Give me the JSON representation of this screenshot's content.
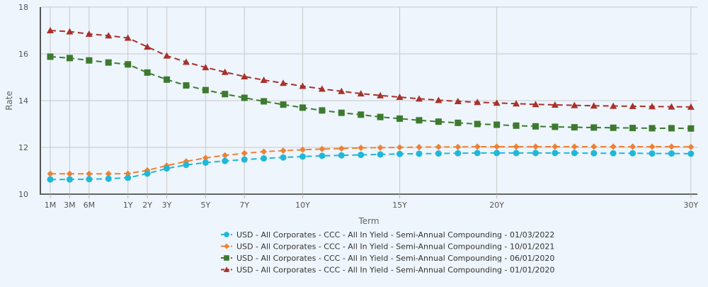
{
  "chart_data": {
    "type": "line",
    "title": "",
    "xlabel": "Term",
    "ylabel": "Rate",
    "ylim": [
      10,
      18
    ],
    "yticks": [
      10,
      12,
      14,
      16,
      18
    ],
    "grid": true,
    "legend_position": "bottom-center",
    "x": [
      "1M",
      "3M",
      "6M",
      "9M",
      "1Y",
      "2Y",
      "3Y",
      "4Y",
      "5Y",
      "6Y",
      "7Y",
      "8Y",
      "9Y",
      "10Y",
      "11Y",
      "12Y",
      "13Y",
      "14Y",
      "15Y",
      "16Y",
      "17Y",
      "18Y",
      "19Y",
      "20Y",
      "21Y",
      "22Y",
      "23Y",
      "24Y",
      "25Y",
      "26Y",
      "27Y",
      "28Y",
      "29Y",
      "30Y"
    ],
    "xtick_labels": [
      "1M",
      "3M",
      "6M",
      "1Y",
      "2Y",
      "3Y",
      "5Y",
      "7Y",
      "10Y",
      "15Y",
      "20Y",
      "30Y"
    ],
    "series": [
      {
        "name": "USD - All Corporates - CCC - All In Yield - Semi-Annual Compounding - 01/03/2022",
        "color": "#1fb8d8",
        "marker": "circle",
        "values": [
          10.63,
          10.63,
          10.64,
          10.66,
          10.7,
          10.88,
          11.1,
          11.25,
          11.35,
          11.42,
          11.48,
          11.53,
          11.57,
          11.61,
          11.64,
          11.66,
          11.68,
          11.7,
          11.72,
          11.73,
          11.74,
          11.75,
          11.76,
          11.76,
          11.76,
          11.76,
          11.76,
          11.76,
          11.75,
          11.75,
          11.75,
          11.74,
          11.74,
          11.73
        ]
      },
      {
        "name": "USD - All Corporates - CCC - All In Yield - Semi-Annual Compounding - 10/01/2021",
        "color": "#ee8134",
        "marker": "diamond",
        "values": [
          10.87,
          10.87,
          10.87,
          10.87,
          10.88,
          11.02,
          11.22,
          11.4,
          11.55,
          11.66,
          11.75,
          11.82,
          11.86,
          11.9,
          11.93,
          11.95,
          11.98,
          11.99,
          12.0,
          12.01,
          12.02,
          12.02,
          12.03,
          12.03,
          12.03,
          12.03,
          12.03,
          12.03,
          12.03,
          12.03,
          12.03,
          12.03,
          12.03,
          12.02
        ]
      },
      {
        "name": "USD - All Corporates - CCC - All In Yield - Semi-Annual Compounding - 06/01/2020",
        "color": "#3d7a2f",
        "marker": "square",
        "values": [
          15.88,
          15.82,
          15.72,
          15.63,
          15.55,
          15.2,
          14.9,
          14.65,
          14.45,
          14.28,
          14.12,
          13.97,
          13.83,
          13.7,
          13.58,
          13.48,
          13.4,
          13.3,
          13.23,
          13.16,
          13.1,
          13.05,
          13.0,
          12.97,
          12.93,
          12.9,
          12.88,
          12.86,
          12.85,
          12.84,
          12.83,
          12.82,
          12.82,
          12.81
        ]
      },
      {
        "name": "USD - All Corporates - CCC - All In Yield - Semi-Annual Compounding - 01/01/2020",
        "color": "#a8312b",
        "marker": "triangle",
        "values": [
          17.0,
          16.95,
          16.85,
          16.78,
          16.68,
          16.3,
          15.92,
          15.65,
          15.42,
          15.22,
          15.03,
          14.88,
          14.75,
          14.62,
          14.5,
          14.4,
          14.3,
          14.22,
          14.15,
          14.08,
          14.02,
          13.97,
          13.93,
          13.9,
          13.87,
          13.84,
          13.82,
          13.8,
          13.78,
          13.77,
          13.76,
          13.75,
          13.74,
          13.73
        ]
      }
    ]
  }
}
